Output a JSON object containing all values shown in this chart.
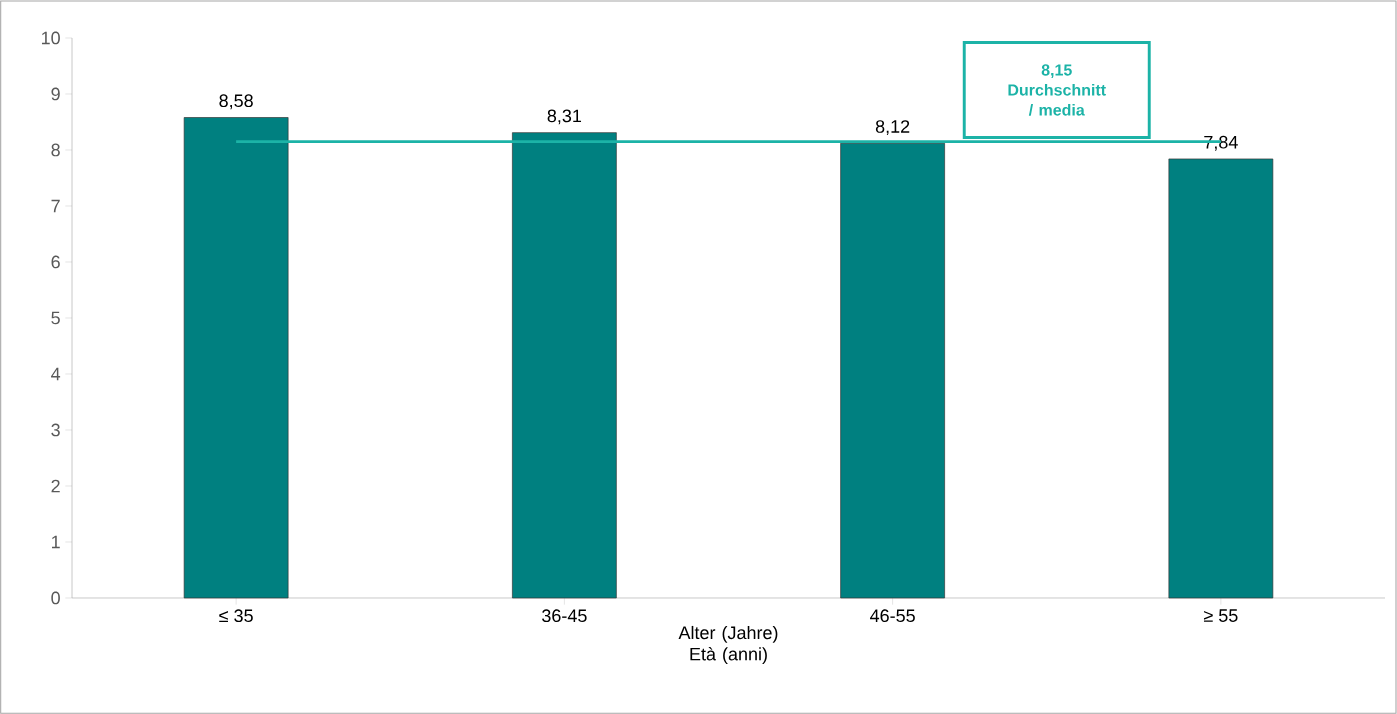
{
  "chart_data": {
    "type": "bar",
    "categories": [
      "≤ 35",
      "36-45",
      "46-55",
      "≥ 55"
    ],
    "values": [
      8.58,
      8.31,
      8.12,
      7.84
    ],
    "value_labels": [
      "8,58",
      "8,31",
      "8,12",
      "7,84"
    ],
    "color": "#008080",
    "xlabel": "Alter (Jahre) Età (anni)",
    "ylim": [
      0,
      10
    ],
    "yticks": [
      0,
      1,
      2,
      3,
      4,
      5,
      6,
      7,
      8,
      9,
      10
    ],
    "ref_lines": [
      {
        "axis": "y",
        "value": 8.15,
        "label": "8,15 Durchschnitt / media",
        "color": "#1cb3a7"
      }
    ]
  }
}
